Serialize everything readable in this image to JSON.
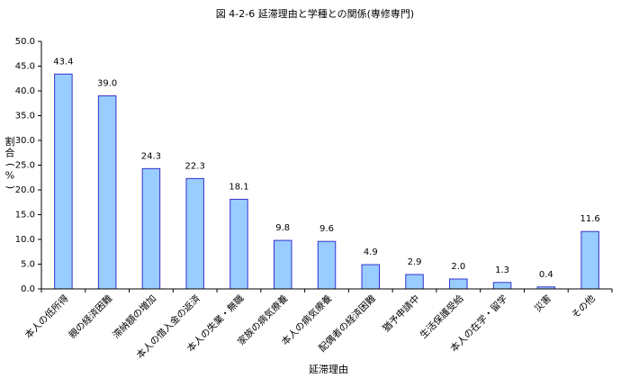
{
  "chart_data": {
    "type": "bar",
    "title": "図 4-2-6 延滞理由と学種との関係(専修専門)",
    "xlabel": "延滞理由",
    "ylabel": "割合(%)",
    "ylim": [
      0,
      50
    ],
    "y_tick_step": 5,
    "y_tick_decimals": 1,
    "value_decimals": 1,
    "grid": false,
    "legend": "none",
    "categories": [
      "本人の低所得",
      "親の経済困難",
      "滞納額の増加",
      "本人の借入金の返済",
      "本人の失業・無職",
      "家族の病気療養",
      "本人の病気療養",
      "配偶者の経済困難",
      "猶予申請中",
      "生活保護受給",
      "本人の在学・留学",
      "災害",
      "その他"
    ],
    "values": [
      43.4,
      39.0,
      24.3,
      22.3,
      18.1,
      9.8,
      9.6,
      4.9,
      2.9,
      2.0,
      1.3,
      0.4,
      11.6
    ],
    "colors": {
      "bar_fill": "#99CCFF",
      "bar_stroke": "#3333CC",
      "axis": "#000000",
      "text": "#000000"
    }
  }
}
